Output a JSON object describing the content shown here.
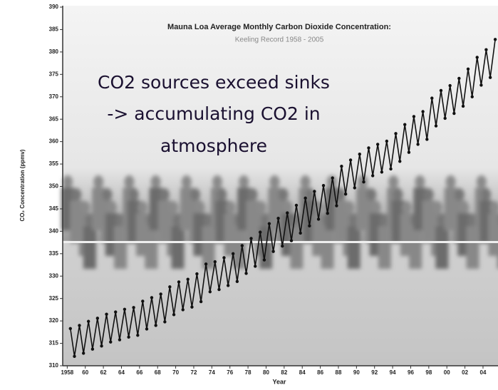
{
  "chart_data": {
    "type": "line",
    "title": "Mauna Loa Average Monthly Carbon Dioxide Concentration:",
    "subtitle": "Keeling Record 1958 - 2005",
    "annotation": [
      "CO2 sources exceed sinks",
      "-> accumulating CO2 in",
      "atmosphere"
    ],
    "x_label": "Year",
    "y_label": "CO₂ Concentration (ppmv)",
    "color": "#111111",
    "xlim": [
      1957.5,
      2005.5
    ],
    "ylim": [
      310,
      390
    ],
    "yticks": [
      310,
      315,
      320,
      325,
      330,
      335,
      340,
      345,
      350,
      355,
      360,
      365,
      370,
      375,
      380,
      385,
      390
    ],
    "xticks": [
      1958,
      {
        "value": 1960,
        "label": "60"
      },
      {
        "value": 1962,
        "label": "62"
      },
      {
        "value": 1964,
        "label": "64"
      },
      {
        "value": 1966,
        "label": "66"
      },
      {
        "value": 1968,
        "label": "68"
      },
      {
        "value": 1970,
        "label": "70"
      },
      {
        "value": 1972,
        "label": "72"
      },
      {
        "value": 1974,
        "label": "74"
      },
      {
        "value": 1976,
        "label": "76"
      },
      {
        "value": 1978,
        "label": "78"
      },
      {
        "value": 1980,
        "label": "80"
      },
      {
        "value": 1982,
        "label": "82"
      },
      {
        "value": 1984,
        "label": "84"
      },
      {
        "value": 1986,
        "label": "86"
      },
      {
        "value": 1988,
        "label": "88"
      },
      {
        "value": 1990,
        "label": "90"
      },
      {
        "value": 1992,
        "label": "92"
      },
      {
        "value": 1994,
        "label": "94"
      },
      {
        "value": 1996,
        "label": "96"
      },
      {
        "value": 1998,
        "label": "98"
      },
      {
        "value": 2000,
        "label": "00"
      },
      {
        "value": 2002,
        "label": "02"
      },
      {
        "value": 2004,
        "label": "04"
      }
    ],
    "x": [
      1958.35,
      1958.8,
      1959.35,
      1959.8,
      1960.35,
      1960.8,
      1961.35,
      1961.8,
      1962.35,
      1962.8,
      1963.35,
      1963.8,
      1964.35,
      1964.8,
      1965.35,
      1965.8,
      1966.35,
      1966.8,
      1967.35,
      1967.8,
      1968.35,
      1968.8,
      1969.35,
      1969.8,
      1970.35,
      1970.8,
      1971.35,
      1971.8,
      1972.35,
      1972.8,
      1973.35,
      1973.8,
      1974.35,
      1974.8,
      1975.35,
      1975.8,
      1976.35,
      1976.8,
      1977.35,
      1977.8,
      1978.35,
      1978.8,
      1979.35,
      1979.8,
      1980.35,
      1980.8,
      1981.35,
      1981.8,
      1982.35,
      1982.8,
      1983.35,
      1983.8,
      1984.35,
      1984.8,
      1985.35,
      1985.8,
      1986.35,
      1986.8,
      1987.35,
      1987.8,
      1988.35,
      1988.8,
      1989.35,
      1989.8,
      1990.35,
      1990.8,
      1991.35,
      1991.8,
      1992.35,
      1992.8,
      1993.35,
      1993.8,
      1994.35,
      1994.8,
      1995.35,
      1995.8,
      1996.35,
      1996.8,
      1997.35,
      1997.8,
      1998.35,
      1998.8,
      1999.35,
      1999.8,
      2000.35,
      2000.8,
      2001.35,
      2001.8,
      2002.35,
      2002.8,
      2003.35,
      2003.8,
      2004.35,
      2004.8,
      2005.35
    ],
    "values": [
      318.3,
      312.1,
      319.0,
      312.8,
      319.9,
      313.7,
      320.6,
      314.4,
      321.5,
      315.3,
      322.0,
      315.8,
      322.6,
      316.4,
      323.0,
      316.8,
      324.4,
      318.2,
      325.2,
      319.0,
      326.0,
      319.8,
      327.6,
      321.4,
      328.7,
      322.5,
      329.3,
      323.1,
      330.5,
      324.3,
      332.7,
      326.5,
      333.2,
      327.0,
      334.1,
      327.9,
      335.0,
      328.8,
      336.8,
      330.6,
      338.4,
      332.2,
      339.8,
      333.6,
      341.7,
      335.5,
      342.9,
      336.7,
      344.1,
      337.9,
      345.8,
      339.6,
      347.4,
      341.2,
      348.9,
      342.7,
      350.2,
      344.0,
      351.9,
      345.7,
      354.5,
      348.3,
      355.9,
      349.7,
      357.2,
      351.0,
      358.6,
      352.4,
      359.4,
      353.2,
      360.1,
      353.9,
      361.8,
      355.6,
      363.8,
      357.6,
      365.6,
      359.4,
      366.7,
      360.5,
      369.7,
      363.5,
      371.4,
      365.2,
      372.5,
      366.3,
      374.1,
      367.9,
      376.2,
      370.0,
      378.8,
      372.6,
      380.5,
      374.3,
      382.8
    ]
  }
}
